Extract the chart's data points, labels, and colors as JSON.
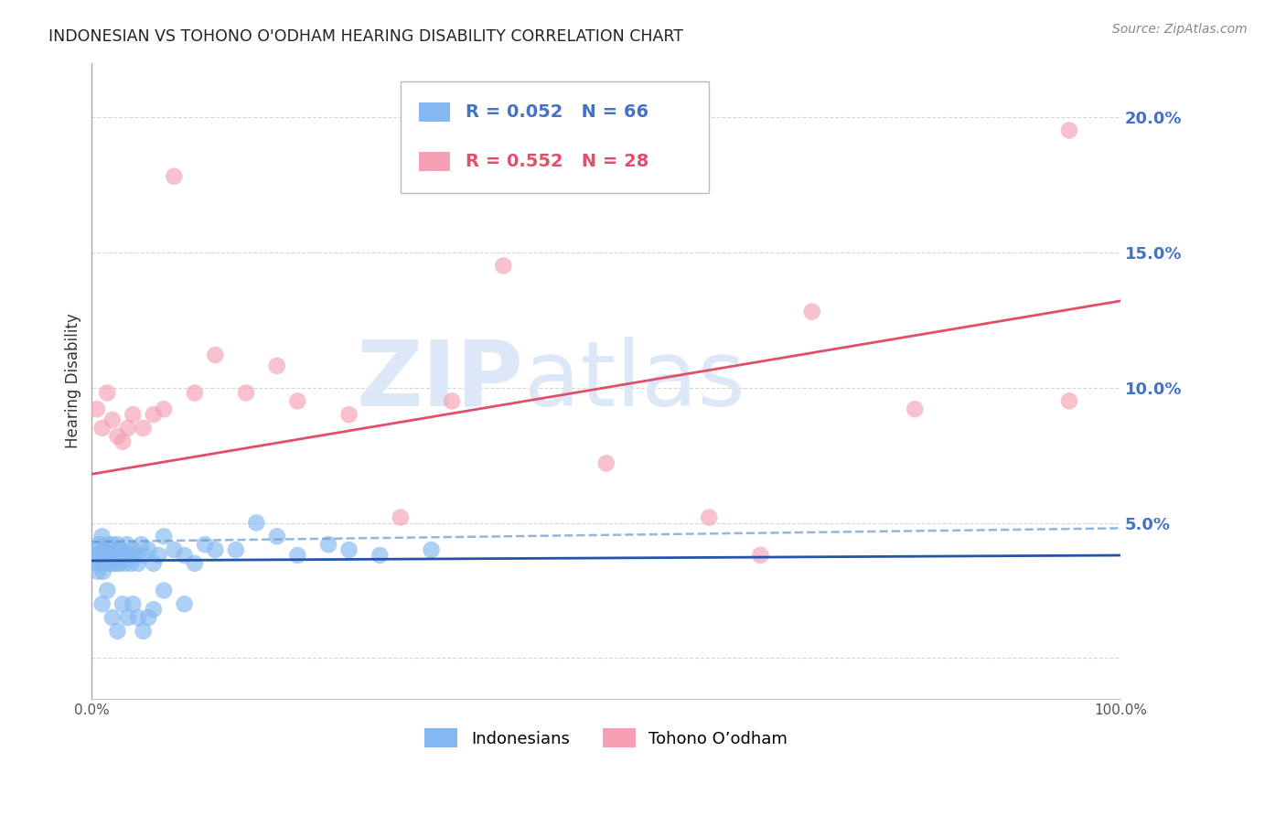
{
  "title": "INDONESIAN VS TOHONO O'ODHAM HEARING DISABILITY CORRELATION CHART",
  "source": "Source: ZipAtlas.com",
  "ylabel": "Hearing Disability",
  "xlim": [
    0,
    100
  ],
  "ylim": [
    -1.5,
    22
  ],
  "yticks": [
    0,
    5,
    10,
    15,
    20
  ],
  "blue_r": "R = 0.052",
  "blue_n": "N = 66",
  "pink_r": "R = 0.552",
  "pink_n": "N = 28",
  "blue_label": "Indonesians",
  "pink_label": "Tohono O’odham",
  "blue_color": "#85b8f0",
  "pink_color": "#f5a0b5",
  "blue_line_color": "#2255aa",
  "blue_dash_color": "#6699cc",
  "pink_line_color": "#e0506a",
  "watermark_top": "ZIP",
  "watermark_bot": "atlas",
  "watermark_color": "#dce8f8",
  "background_color": "#ffffff",
  "grid_color": "#cccccc",
  "ytick_color": "#4472c4",
  "blue_solid_start_y": 3.6,
  "blue_solid_end_y": 3.8,
  "blue_dash_start_y": 4.3,
  "blue_dash_end_y": 4.8,
  "pink_solid_start_y": 6.8,
  "pink_solid_end_y": 13.2,
  "blue_points_x": [
    0.3,
    0.4,
    0.5,
    0.6,
    0.7,
    0.8,
    0.9,
    1.0,
    1.1,
    1.2,
    1.3,
    1.4,
    1.5,
    1.6,
    1.7,
    1.8,
    1.9,
    2.0,
    2.1,
    2.2,
    2.3,
    2.4,
    2.5,
    2.6,
    2.7,
    2.8,
    3.0,
    3.2,
    3.4,
    3.6,
    3.8,
    4.0,
    4.2,
    4.5,
    4.8,
    5.0,
    5.5,
    6.0,
    6.5,
    7.0,
    8.0,
    9.0,
    10.0,
    11.0,
    12.0,
    14.0,
    16.0,
    18.0,
    20.0,
    23.0,
    25.0,
    28.0,
    33.0,
    1.0,
    1.5,
    2.0,
    2.5,
    3.0,
    3.5,
    4.0,
    4.5,
    5.0,
    5.5,
    6.0,
    7.0,
    9.0
  ],
  "blue_points_y": [
    3.8,
    4.0,
    3.5,
    3.2,
    4.2,
    3.8,
    3.5,
    4.5,
    3.2,
    3.8,
    4.0,
    3.5,
    4.2,
    3.8,
    3.5,
    4.0,
    3.8,
    4.2,
    3.5,
    3.8,
    4.0,
    3.5,
    4.2,
    3.8,
    3.5,
    4.0,
    3.8,
    3.5,
    4.2,
    3.8,
    3.5,
    4.0,
    3.8,
    3.5,
    4.2,
    3.8,
    4.0,
    3.5,
    3.8,
    4.5,
    4.0,
    3.8,
    3.5,
    4.2,
    4.0,
    4.0,
    5.0,
    4.5,
    3.8,
    4.2,
    4.0,
    3.8,
    4.0,
    2.0,
    2.5,
    1.5,
    1.0,
    2.0,
    1.5,
    2.0,
    1.5,
    1.0,
    1.5,
    1.8,
    2.5,
    2.0
  ],
  "pink_points_x": [
    0.5,
    1.0,
    1.5,
    2.0,
    2.5,
    3.0,
    3.5,
    4.0,
    5.0,
    6.0,
    7.0,
    8.0,
    10.0,
    12.0,
    15.0,
    18.0,
    20.0,
    25.0,
    30.0,
    35.0,
    40.0,
    50.0,
    60.0,
    65.0,
    70.0,
    80.0,
    95.0,
    95.0
  ],
  "pink_points_y": [
    9.2,
    8.5,
    9.8,
    8.8,
    8.2,
    8.0,
    8.5,
    9.0,
    8.5,
    9.0,
    9.2,
    17.8,
    9.8,
    11.2,
    9.8,
    10.8,
    9.5,
    9.0,
    5.2,
    9.5,
    14.5,
    7.2,
    5.2,
    3.8,
    12.8,
    9.2,
    9.5,
    19.5
  ]
}
